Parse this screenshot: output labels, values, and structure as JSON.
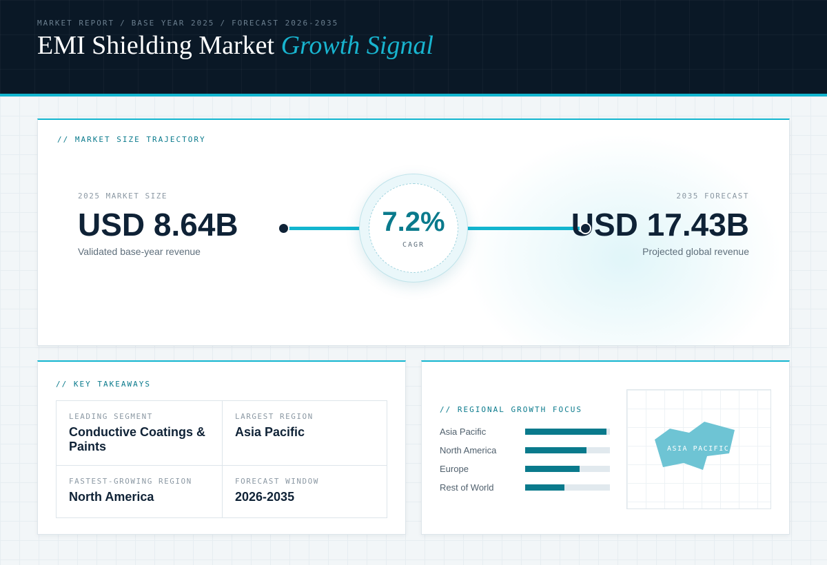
{
  "header": {
    "breadcrumb": [
      "MARKET REPORT",
      "BASE YEAR 2025",
      "FORECAST 2026-2035"
    ],
    "breadcrumb_separator": "/",
    "title_main": "EMI Shielding Market",
    "title_accent": "Growth Signal"
  },
  "trajectory": {
    "section_label": "// MARKET SIZE TRAJECTORY",
    "base": {
      "label": "2025 MARKET SIZE",
      "value": "USD 8.64B",
      "description": "Validated base-year revenue"
    },
    "cagr": {
      "value": "7.2%",
      "label": "CAGR"
    },
    "forecast": {
      "label": "2035 FORECAST",
      "value": "USD 17.43B",
      "description": "Projected global revenue"
    }
  },
  "takeaways": {
    "section_label": "// KEY TAKEAWAYS",
    "items": [
      {
        "label": "LEADING SEGMENT",
        "value": "Conductive Coatings & Paints"
      },
      {
        "label": "LARGEST REGION",
        "value": "Asia Pacific"
      },
      {
        "label": "FASTEST-GROWING REGION",
        "value": "North America"
      },
      {
        "label": "FORECAST WINDOW",
        "value": "2026-2035"
      }
    ]
  },
  "regional": {
    "section_label": "// REGIONAL GROWTH FOCUS",
    "regions": [
      {
        "name": "Asia Pacific",
        "share": 0.96
      },
      {
        "name": "North America",
        "share": 0.72
      },
      {
        "name": "Europe",
        "share": 0.64
      },
      {
        "name": "Rest of World",
        "share": 0.46
      }
    ],
    "map_label": "ASIA PACIFIC",
    "map_color": "#6ec4d4"
  },
  "colors": {
    "accent": "#12b5cf",
    "accent_dark": "#0a7a8c",
    "header_bg": "#0a1826",
    "text_dark": "#0f2236"
  }
}
